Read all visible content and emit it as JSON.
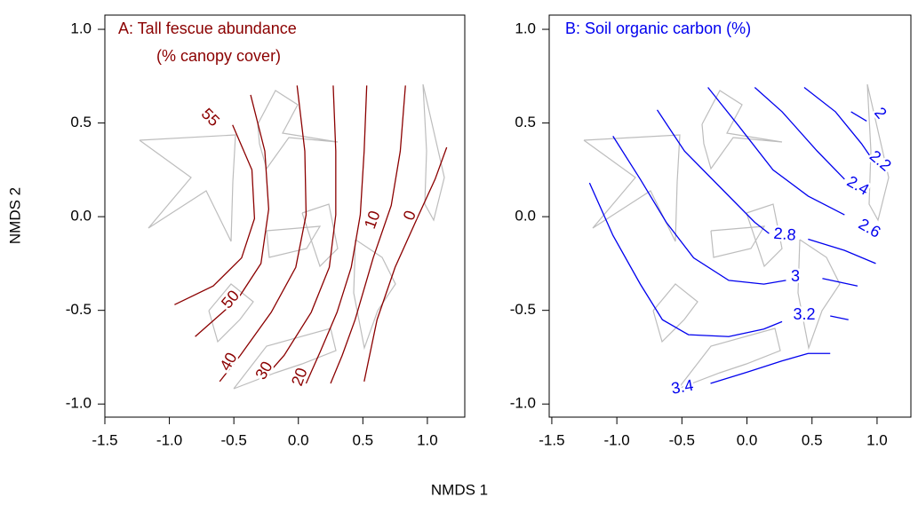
{
  "xlabel": "NMDS 1",
  "ylabel": "NMDS 2",
  "chart_data": [
    {
      "type": "contour",
      "title": [
        "A: Tall fescue abundance",
        "(% canopy cover)"
      ],
      "color": "#8b0000",
      "xlim": [
        -1.5,
        1.29
      ],
      "ylim": [
        -1.07,
        1.076
      ],
      "xticks": [
        -1.5,
        {
          "value": -1,
          "label": "-1.0"
        },
        -0.5,
        {
          "value": 0,
          "label": "0.0"
        },
        0.5,
        {
          "value": 1,
          "label": "1.0"
        }
      ],
      "yticks": [
        {
          "value": -1,
          "label": "-1.0"
        },
        -0.5,
        {
          "value": 0,
          "label": "0.0"
        },
        0.5,
        {
          "value": 1,
          "label": "1.0"
        }
      ],
      "contours": [
        {
          "level": 55,
          "x": [
            -0.51,
            -0.36,
            -0.34,
            -0.44,
            -0.66,
            -0.96
          ],
          "y": [
            0.49,
            0.25,
            -0.01,
            -0.22,
            -0.37,
            -0.47
          ]
        },
        {
          "level": 50,
          "x": [
            -0.37,
            -0.26,
            -0.23,
            -0.29,
            -0.47,
            -0.8
          ],
          "y": [
            0.65,
            0.35,
            0.04,
            -0.25,
            -0.44,
            -0.64
          ]
        },
        {
          "level": 40,
          "x": [
            -0.01,
            0.05,
            0.06,
            -0.02,
            -0.21,
            -0.45,
            -0.61
          ],
          "y": [
            0.7,
            0.35,
            0.01,
            -0.27,
            -0.51,
            -0.74,
            -0.88
          ]
        },
        {
          "level": 30,
          "x": [
            0.27,
            0.29,
            0.29,
            0.24,
            0.1,
            -0.11,
            -0.25
          ],
          "y": [
            0.7,
            0.35,
            0.01,
            -0.27,
            -0.51,
            -0.74,
            -0.85
          ]
        },
        {
          "level": 20,
          "x": [
            0.53,
            0.51,
            0.48,
            0.41,
            0.3,
            0.17,
            0.06
          ],
          "y": [
            0.7,
            0.35,
            0.01,
            -0.27,
            -0.51,
            -0.72,
            -0.89
          ]
        },
        {
          "level": 10,
          "x": [
            0.83,
            0.79,
            0.72,
            0.58,
            0.44,
            0.34,
            0.25
          ],
          "y": [
            0.7,
            0.35,
            0.06,
            -0.22,
            -0.55,
            -0.74,
            -0.89
          ]
        },
        {
          "level": 0,
          "x": [
            1.15,
            1.06,
            0.92,
            0.75,
            0.61,
            0.51
          ],
          "y": [
            0.37,
            0.2,
            -0.01,
            -0.27,
            -0.55,
            -0.88
          ]
        }
      ]
    },
    {
      "type": "contour",
      "title": [
        "B: Soil organic carbon (%)"
      ],
      "color": "#0000ee",
      "xlim": [
        -1.52,
        1.26
      ],
      "ylim": [
        -1.07,
        1.076
      ],
      "xticks": [
        -1.5,
        {
          "value": -1,
          "label": "-1.0"
        },
        -0.5,
        {
          "value": 0,
          "label": "0.0"
        },
        0.5,
        {
          "value": 1,
          "label": "1.0"
        }
      ],
      "yticks": [
        {
          "value": -1,
          "label": "-1.0"
        },
        -0.5,
        {
          "value": 0,
          "label": "0.0"
        },
        0.5,
        {
          "value": 1,
          "label": "1.0"
        }
      ],
      "contours": [
        {
          "level": 2,
          "x": [
            0.8,
            0.92
          ],
          "y": [
            0.56,
            0.51
          ]
        },
        {
          "level": 2.2,
          "x": [
            0.44,
            0.68,
            0.88,
            0.95
          ],
          "y": [
            0.69,
            0.56,
            0.39,
            0.32
          ]
        },
        {
          "level": 2.4,
          "x": [
            0.06,
            0.27,
            0.54,
            0.75
          ],
          "y": [
            0.69,
            0.56,
            0.35,
            0.2
          ]
        },
        {
          "level": 2.6,
          "x": [
            -0.3,
            -0.07,
            0.2,
            0.47,
            0.75
          ],
          "y": [
            0.69,
            0.49,
            0.25,
            0.11,
            0.01
          ]
        },
        {
          "level": 2.8,
          "x": [
            -0.69,
            -0.48,
            -0.21,
            0.06,
            0.17
          ],
          "y": [
            0.57,
            0.35,
            0.16,
            -0.03,
            -0.09
          ]
        },
        {
          "level": 2.8,
          "x": [
            0.47,
            0.75,
            0.99
          ],
          "y": [
            -0.12,
            -0.18,
            -0.25
          ]
        },
        {
          "level": 3,
          "x": [
            -1.03,
            -0.82,
            -0.62,
            -0.41,
            -0.14,
            0.13,
            0.3
          ],
          "y": [
            0.43,
            0.2,
            -0.03,
            -0.22,
            -0.34,
            -0.36,
            -0.34
          ]
        },
        {
          "level": 3,
          "x": [
            0.58,
            0.85
          ],
          "y": [
            -0.33,
            -0.37
          ]
        },
        {
          "level": 3.2,
          "x": [
            -1.21,
            -1.03,
            -0.82,
            -0.65,
            -0.45,
            -0.14,
            0.13,
            0.27
          ],
          "y": [
            0.18,
            -0.1,
            -0.36,
            -0.55,
            -0.63,
            -0.64,
            -0.6,
            -0.56
          ]
        },
        {
          "level": 3.2,
          "x": [
            0.64,
            0.78
          ],
          "y": [
            -0.53,
            -0.55
          ]
        },
        {
          "level": 3.4,
          "x": [
            -0.57,
            -0.55
          ],
          "y": [
            -0.9,
            -0.9
          ]
        },
        {
          "level": 3.4,
          "x": [
            -0.28,
            -0.0,
            0.27,
            0.47,
            0.64
          ],
          "y": [
            -0.89,
            -0.83,
            -0.77,
            -0.73,
            -0.73
          ]
        }
      ]
    }
  ]
}
